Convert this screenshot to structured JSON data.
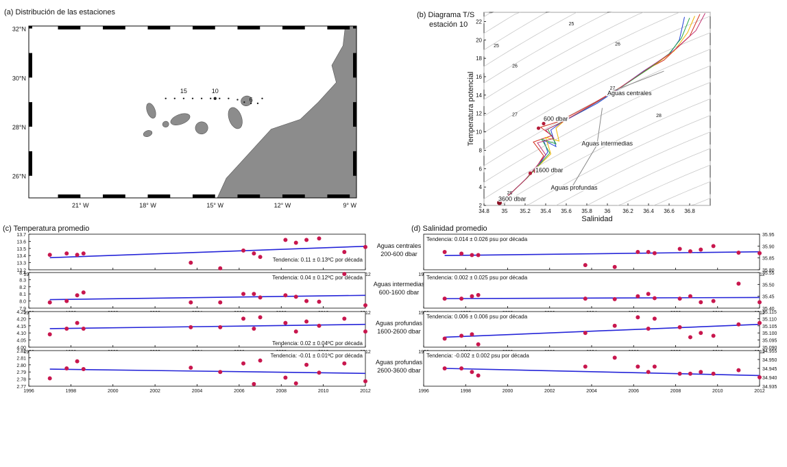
{
  "chart_data": [
    {
      "panel": "a",
      "type": "map",
      "title": "(a)  Distribución de las estaciones",
      "lat_ticks": [
        "32°N",
        "30°N",
        "28°N",
        "26°N"
      ],
      "lat_values": [
        32,
        30,
        28,
        26
      ],
      "lon_ticks": [
        "21° W",
        "18° W",
        "15° W",
        "12° W",
        "9° W"
      ],
      "lon_values": [
        -21,
        -18,
        -15,
        -12,
        -9
      ],
      "xlim": [
        -23.3,
        -8.7
      ],
      "ylim": [
        25.1,
        32.1
      ],
      "station_labels": [
        {
          "label": "15",
          "lon": -16.4,
          "lat": 29.25
        },
        {
          "label": "10",
          "lon": -15.0,
          "lat": 29.25
        },
        {
          "label": "6",
          "lon": -13.4,
          "lat": 28.9
        }
      ],
      "stations": [
        {
          "lon": -17.2,
          "lat": 29.15
        },
        {
          "lon": -16.8,
          "lat": 29.15
        },
        {
          "lon": -16.4,
          "lat": 29.15
        },
        {
          "lon": -16.0,
          "lat": 29.15
        },
        {
          "lon": -15.6,
          "lat": 29.15
        },
        {
          "lon": -15.2,
          "lat": 29.15
        },
        {
          "lon": -14.8,
          "lat": 29.15
        },
        {
          "lon": -14.4,
          "lat": 29.15
        },
        {
          "lon": -14.0,
          "lat": 29.1
        },
        {
          "lon": -13.7,
          "lat": 29.0
        },
        {
          "lon": -13.4,
          "lat": 28.95
        },
        {
          "lon": -13.1,
          "lat": 28.95
        },
        {
          "lon": -12.9,
          "lat": 29.15
        }
      ],
      "highlight_station": {
        "lon": -15.0,
        "lat": 29.15
      },
      "land_color": "#8c8c8c"
    },
    {
      "panel": "b",
      "type": "line",
      "title": "(b) Diagrama T/S",
      "subtitle": "estación 10",
      "xlabel": "Salinidad",
      "ylabel": "Temperatura potencial",
      "xlim": [
        34.8,
        37.0
      ],
      "ylim": [
        2,
        23
      ],
      "xticks": [
        34.8,
        35,
        35.2,
        35.4,
        35.6,
        35.8,
        36,
        36.2,
        36.4,
        36.6,
        36.8
      ],
      "yticks": [
        2,
        4,
        6,
        8,
        10,
        12,
        14,
        16,
        18,
        20,
        22
      ],
      "density_labels": [
        {
          "label": "25",
          "x": 34.92,
          "y": 19.2
        },
        {
          "label": "25",
          "x": 35.65,
          "y": 21.6
        },
        {
          "label": "26",
          "x": 35.1,
          "y": 17.0
        },
        {
          "label": "26",
          "x": 36.1,
          "y": 19.4
        },
        {
          "label": "27",
          "x": 35.1,
          "y": 11.7
        },
        {
          "label": "27",
          "x": 36.05,
          "y": 14.6
        },
        {
          "label": "28",
          "x": 35.05,
          "y": 3.2
        },
        {
          "label": "28",
          "x": 36.5,
          "y": 11.6
        }
      ],
      "annotations": [
        {
          "label": "Aguas centrales",
          "x": 36.0,
          "y": 14.0
        },
        {
          "label": "600 dbar",
          "x": 35.38,
          "y": 11.2
        },
        {
          "label": "Aguas intermedias",
          "x": 35.75,
          "y": 8.5
        },
        {
          "label": "1600 dbar",
          "x": 35.3,
          "y": 5.6
        },
        {
          "label": "Aguas profundas",
          "x": 35.45,
          "y": 3.7
        },
        {
          "label": "3600 dbar",
          "x": 34.94,
          "y": 2.5
        }
      ],
      "series": [
        {
          "color": "#1f3fd6",
          "x": [
            34.95,
            35.05,
            35.2,
            35.32,
            35.42,
            35.38,
            35.5,
            35.45,
            35.55,
            35.7,
            35.9,
            36.1,
            36.35,
            36.6,
            36.7,
            36.75
          ],
          "y": [
            2.3,
            3.2,
            4.8,
            6.2,
            7.8,
            9.1,
            8.4,
            10.2,
            11.0,
            11.9,
            13.1,
            14.6,
            16.6,
            18.4,
            20.0,
            22.5
          ]
        },
        {
          "color": "#d12b1b",
          "x": [
            34.95,
            35.04,
            35.22,
            35.3,
            35.38,
            35.28,
            35.46,
            35.35,
            35.52,
            35.68,
            35.88,
            36.12,
            36.4,
            36.55,
            36.8,
            36.9
          ],
          "y": [
            2.3,
            3.1,
            5.0,
            6.0,
            7.4,
            8.9,
            9.6,
            10.5,
            11.1,
            12.0,
            13.2,
            14.8,
            16.9,
            17.8,
            20.4,
            22.8
          ]
        },
        {
          "color": "#f0b400",
          "x": [
            34.95,
            35.06,
            35.21,
            35.33,
            35.45,
            35.4,
            35.53,
            35.5,
            35.58,
            35.72,
            35.92,
            36.15,
            36.45,
            36.65,
            36.78,
            36.85
          ],
          "y": [
            2.3,
            3.3,
            4.9,
            6.3,
            7.6,
            9.4,
            9.0,
            10.4,
            11.2,
            12.1,
            13.4,
            15.0,
            17.2,
            18.8,
            20.8,
            22.6
          ]
        },
        {
          "color": "#27a84a",
          "x": [
            34.95,
            35.05,
            35.21,
            35.31,
            35.44,
            35.36,
            35.5,
            35.42,
            35.56,
            35.71,
            35.91,
            36.14,
            36.42,
            36.6,
            36.72,
            36.8
          ],
          "y": [
            2.3,
            3.2,
            4.9,
            6.1,
            7.7,
            9.2,
            8.7,
            10.3,
            11.1,
            12.0,
            13.3,
            14.9,
            17.0,
            18.5,
            20.2,
            22.4
          ]
        },
        {
          "color": "#c03070",
          "x": [
            34.95,
            35.05,
            35.2,
            35.3,
            35.4,
            35.32,
            35.48,
            35.4,
            35.55,
            35.69,
            35.89,
            36.11,
            36.38,
            36.62,
            36.86,
            36.95
          ],
          "y": [
            2.3,
            3.2,
            4.8,
            6.1,
            7.5,
            8.8,
            9.3,
            10.2,
            11.0,
            11.9,
            13.2,
            14.7,
            16.8,
            18.6,
            21.0,
            22.9
          ]
        }
      ]
    },
    {
      "panel": "c",
      "type": "scatter",
      "title": "(c) Temperatura promedio",
      "xticks": [
        1996,
        1998,
        2000,
        2002,
        2004,
        2006,
        2008,
        2010,
        2012
      ],
      "xlim": [
        1996,
        2012
      ],
      "rows": [
        {
          "label1": "Aguas centrales",
          "label2": "200-600 dbar",
          "trend": "Tendencia: 0.11 ± 0.13ºC por década",
          "ylim": [
            13.2,
            13.7
          ],
          "yticks": [
            "13.2",
            "13.3",
            "13.4",
            "13.5",
            "13.6",
            "13.7"
          ],
          "ytick_values": [
            13.2,
            13.3,
            13.4,
            13.5,
            13.6,
            13.7
          ],
          "x": [
            1997.0,
            1997.8,
            1998.3,
            1998.6,
            2003.7,
            2005.1,
            2006.2,
            2006.7,
            2007.0,
            2008.2,
            2008.7,
            2009.2,
            2009.8,
            2011.0,
            2012.0
          ],
          "y": [
            13.41,
            13.43,
            13.41,
            13.43,
            13.3,
            13.22,
            13.47,
            13.43,
            13.38,
            13.62,
            13.58,
            13.62,
            13.64,
            13.45,
            13.52
          ],
          "fit": [
            [
              1997.0,
              13.37
            ],
            [
              2012.0,
              13.53
            ]
          ]
        },
        {
          "label1": "Aguas intermedias",
          "label2": "600-1600 dbar",
          "trend": "Tendencia: 0.04 ± 0.12ºC por década",
          "ylim": [
            7.9,
            8.4
          ],
          "yticks": [
            "7.9",
            "8.0",
            "8.1",
            "8.2",
            "8.3",
            "8.4"
          ],
          "ytick_values": [
            7.9,
            8.0,
            8.1,
            8.2,
            8.3,
            8.4
          ],
          "x": [
            1997.0,
            1997.8,
            1998.3,
            1998.6,
            2003.7,
            2005.1,
            2006.2,
            2006.7,
            2007.0,
            2008.2,
            2008.7,
            2009.2,
            2009.8,
            2011.0,
            2012.0
          ],
          "y": [
            7.98,
            8.0,
            8.08,
            8.12,
            7.98,
            7.98,
            8.1,
            8.1,
            8.05,
            8.08,
            8.06,
            8.0,
            7.99,
            8.38,
            7.94
          ],
          "fit": [
            [
              1997.0,
              8.02
            ],
            [
              2012.0,
              8.08
            ]
          ]
        },
        {
          "label1": "Aguas profundas",
          "label2": "1600-2600 dbar",
          "trend": "Tendencia:  0.02 ± 0.04ºC por década",
          "ylim": [
            4.0,
            4.25
          ],
          "yticks": [
            "4.00",
            "4.05",
            "4.10",
            "4.15",
            "4.20",
            "4.25"
          ],
          "ytick_values": [
            4.0,
            4.05,
            4.1,
            4.15,
            4.2,
            4.25
          ],
          "x": [
            1997.0,
            1997.8,
            1998.3,
            1998.6,
            2003.7,
            2005.1,
            2006.2,
            2006.7,
            2007.0,
            2008.2,
            2008.7,
            2009.2,
            2009.8,
            2011.0,
            2012.0
          ],
          "y": [
            4.09,
            4.13,
            4.17,
            4.13,
            4.14,
            4.14,
            4.2,
            4.13,
            4.21,
            4.17,
            4.11,
            4.18,
            4.15,
            4.2,
            4.11
          ],
          "fit": [
            [
              1997.0,
              4.13
            ],
            [
              2012.0,
              4.16
            ]
          ]
        },
        {
          "label1": "Aguas profundas",
          "label2": "2600-3600 dbar",
          "trend": "Tendencia: -0.01 ± 0.01ºC por década",
          "ylim": [
            2.77,
            2.82
          ],
          "yticks": [
            "2.77",
            "2.78",
            "2.79",
            "2.80",
            "2.81",
            "2.82"
          ],
          "ytick_values": [
            2.77,
            2.78,
            2.79,
            2.8,
            2.81,
            2.82
          ],
          "x": [
            1997.0,
            1997.8,
            1998.3,
            1998.6,
            2003.7,
            2005.1,
            2006.2,
            2006.7,
            2007.0,
            2008.2,
            2008.7,
            2009.2,
            2009.8,
            2011.0,
            2012.0
          ],
          "y": [
            2.781,
            2.795,
            2.805,
            2.794,
            2.796,
            2.79,
            2.802,
            2.773,
            2.806,
            2.782,
            2.774,
            2.8,
            2.789,
            2.802,
            2.777
          ],
          "fit": [
            [
              1997.0,
              2.794
            ],
            [
              2012.0,
              2.788
            ]
          ]
        }
      ]
    },
    {
      "panel": "d",
      "type": "scatter",
      "title": "(d)  Salinidad promedio",
      "xticks": [
        1996,
        1998,
        2000,
        2002,
        2004,
        2006,
        2008,
        2010,
        2012
      ],
      "xlim": [
        1996,
        2012
      ],
      "rows": [
        {
          "trend": "Tendencia: 0.014 ± 0.026 psu por década",
          "ylim": [
            35.8,
            35.95
          ],
          "yticks": [
            "35.80",
            "35.85",
            "35.90",
            "35.95"
          ],
          "ytick_values": [
            35.8,
            35.85,
            35.9,
            35.95
          ],
          "x": [
            1997.0,
            1997.8,
            1998.3,
            1998.6,
            2003.7,
            2005.1,
            2006.2,
            2006.7,
            2007.0,
            2008.2,
            2008.7,
            2009.2,
            2009.8,
            2011.0,
            2012.0
          ],
          "y": [
            35.875,
            35.868,
            35.862,
            35.862,
            35.82,
            35.812,
            35.875,
            35.875,
            35.87,
            35.888,
            35.878,
            35.885,
            35.9,
            35.872,
            35.87
          ],
          "fit": [
            [
              1997.0,
              35.86
            ],
            [
              2012.0,
              35.876
            ]
          ]
        },
        {
          "trend": "Tendencia: 0.002 ± 0.025 psu por década",
          "ylim": [
            35.4,
            35.55
          ],
          "yticks": [
            "35.40",
            "35.45",
            "35.50",
            "35.55"
          ],
          "ytick_values": [
            35.4,
            35.45,
            35.5,
            35.55
          ],
          "x": [
            1997.0,
            1997.8,
            1998.3,
            1998.6,
            2003.7,
            2005.1,
            2006.2,
            2006.7,
            2007.0,
            2008.2,
            2008.7,
            2009.2,
            2009.8,
            2011.0,
            2012.0
          ],
          "y": [
            35.44,
            35.44,
            35.45,
            35.455,
            35.44,
            35.438,
            35.45,
            35.46,
            35.442,
            35.44,
            35.45,
            35.425,
            35.43,
            35.503,
            35.425
          ],
          "fit": [
            [
              1997.0,
              35.44
            ],
            [
              2012.0,
              35.445
            ]
          ]
        },
        {
          "trend": "Tendencia: 0.006 ± 0.006 psu por década",
          "ylim": [
            35.09,
            35.115
          ],
          "yticks": [
            "35.090",
            "35.095",
            "35.100",
            "35.105",
            "35.110",
            "35.115"
          ],
          "ytick_values": [
            35.09,
            35.095,
            35.1,
            35.105,
            35.11,
            35.115
          ],
          "x": [
            1997.0,
            1997.8,
            1998.3,
            1998.6,
            2003.7,
            2005.1,
            2006.2,
            2006.7,
            2007.0,
            2008.2,
            2008.7,
            2009.2,
            2009.8,
            2011.0,
            2012.0
          ],
          "y": [
            35.096,
            35.098,
            35.099,
            35.092,
            35.1,
            35.105,
            35.111,
            35.103,
            35.11,
            35.104,
            35.097,
            35.1,
            35.098,
            35.106,
            35.107
          ],
          "fit": [
            [
              1997.0,
              35.097
            ],
            [
              2012.0,
              35.106
            ]
          ]
        },
        {
          "trend": "Tendencia: -0.002 ± 0.002 psu por década",
          "ylim": [
            34.935,
            34.955
          ],
          "yticks": [
            "34.935",
            "34.940",
            "34.945",
            "34.950",
            "34.955"
          ],
          "ytick_values": [
            34.935,
            34.94,
            34.945,
            34.95,
            34.955
          ],
          "x": [
            1997.0,
            1997.8,
            1998.3,
            1998.6,
            2003.7,
            2005.1,
            2006.2,
            2006.7,
            2007.0,
            2008.2,
            2008.7,
            2009.2,
            2009.8,
            2011.0,
            2012.0
          ],
          "y": [
            34.945,
            34.945,
            34.943,
            34.941,
            34.946,
            34.951,
            34.946,
            34.943,
            34.946,
            34.942,
            34.942,
            34.943,
            34.942,
            34.944,
            34.94
          ],
          "fit": [
            [
              1997.0,
              34.945
            ],
            [
              2012.0,
              34.941
            ]
          ]
        }
      ]
    }
  ]
}
